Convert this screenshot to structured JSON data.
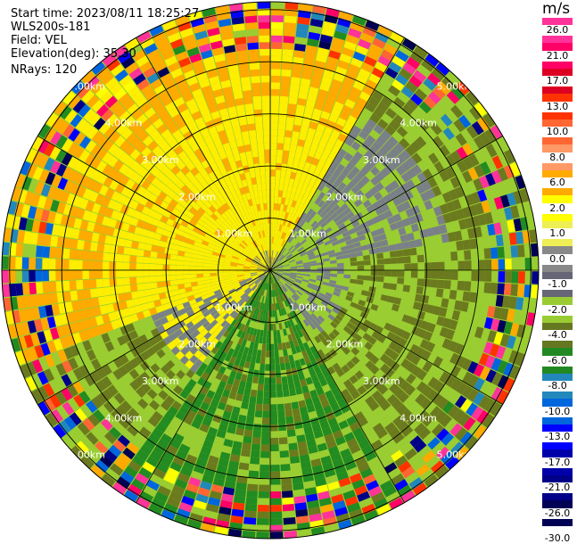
{
  "header": {
    "start_time": "Start time: 2023/08/11 18:25:27",
    "site": "WLS200s-181",
    "field": "Field: VEL",
    "elevation": "Elevation(deg): 35.30",
    "nrays": "NRays: 120"
  },
  "range_rings": [
    {
      "label": "1.00km",
      "km": 1
    },
    {
      "label": "2.00km",
      "km": 2
    },
    {
      "label": "3.00km",
      "km": 3
    },
    {
      "label": "4.00km",
      "km": 4
    },
    {
      "label": "5.00km",
      "km": 5
    }
  ],
  "colorbar": {
    "unit": "m/s",
    "labels": [
      "26.0",
      "21.0",
      "17.0",
      "13.0",
      "10.0",
      "8.0",
      "6.0",
      "2.0",
      "1.0",
      "0.0",
      "-1.0",
      "-2.0",
      "-4.0",
      "-6.0",
      "-8.0",
      "-10.0",
      "-13.0",
      "-17.0",
      "-21.0",
      "-26.0",
      "-30.0"
    ],
    "colors": [
      "#ff3399",
      "#ff0066",
      "#dd0022",
      "#ff3300",
      "#ff6633",
      "#ff9966",
      "#ffaa00",
      "#ffff00",
      "#eeee55",
      "#888888",
      "#666677",
      "#99cc33",
      "#667722",
      "#228822",
      "#2288bb",
      "#0066dd",
      "#0000ff",
      "#0000aa",
      "#000088",
      "#000055"
    ]
  }
}
